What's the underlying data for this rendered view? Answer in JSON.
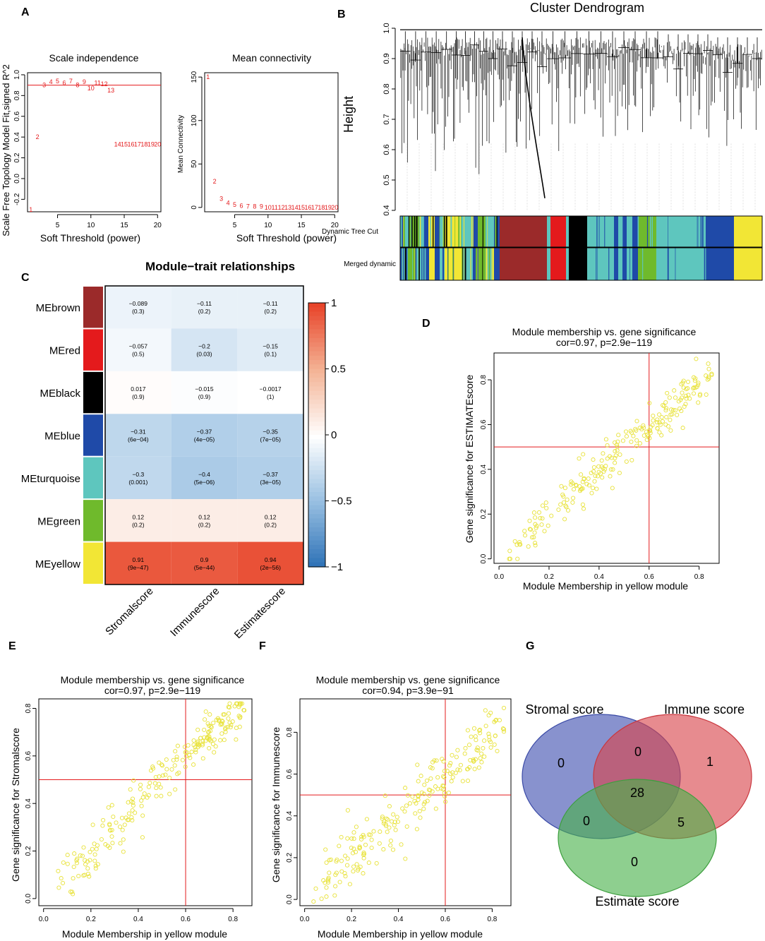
{
  "colors": {
    "red": "#e41a1c",
    "brown": "#9b2a2a",
    "black": "#000000",
    "blue": "#1f4aa8",
    "turquoise": "#5ec6be",
    "green": "#6fba2c",
    "yellow": "#f2e635",
    "point_yellow": "#e8e23a",
    "heat_pos": "#e8442a",
    "heat_neg": "#2a6fb5",
    "venn_stromal": "#3f4fb0",
    "venn_immune": "#d9434a",
    "venn_estimate": "#49b14a"
  },
  "panels": {
    "A": "A",
    "B": "B",
    "C": "C",
    "D": "D",
    "E": "E",
    "F": "F",
    "G": "G"
  },
  "chart_data": [
    {
      "id": "A1",
      "type": "scatter",
      "title": "Scale independence",
      "xlabel": "Soft Threshold (power)",
      "ylabel": "Scale Free Topology Model Fit,signed R^2",
      "xlim": [
        0.5,
        20.5
      ],
      "ylim": [
        -0.32,
        1.02
      ],
      "xticks": [
        "5",
        "10",
        "15",
        "20"
      ],
      "xtick_values": [
        5,
        10,
        15,
        20
      ],
      "yticks": [
        "-0.2",
        "0.0",
        "0.2",
        "0.4",
        "0.6",
        "0.8",
        "1.0"
      ],
      "ytick_values": [
        -0.2,
        0.0,
        0.2,
        0.4,
        0.6,
        0.8,
        1.0
      ],
      "hline": 0.9,
      "labels": [
        "1",
        "2",
        "3",
        "4",
        "5",
        "6",
        "7",
        "8",
        "9",
        "10",
        "11",
        "12",
        "13",
        "14",
        "15",
        "16",
        "17",
        "18",
        "19",
        "20"
      ],
      "x": [
        1,
        2,
        3,
        4,
        5,
        6,
        7,
        8,
        9,
        10,
        11,
        12,
        13,
        14,
        15,
        16,
        17,
        18,
        19,
        20
      ],
      "y": [
        -0.3,
        0.4,
        0.9,
        0.93,
        0.94,
        0.92,
        0.94,
        0.9,
        0.93,
        0.87,
        0.92,
        0.91,
        0.85,
        0.33,
        0.33,
        0.33,
        0.33,
        0.33,
        0.33,
        0.33
      ]
    },
    {
      "id": "A2",
      "type": "scatter",
      "title": "Mean connectivity",
      "xlabel": "Soft Threshold (power)",
      "ylabel": "Mean Connectivity",
      "xlim": [
        0.5,
        20.5
      ],
      "ylim": [
        -5,
        155
      ],
      "xticks": [
        "5",
        "10",
        "15",
        "20"
      ],
      "xtick_values": [
        5,
        10,
        15,
        20
      ],
      "yticks": [
        "0",
        "50",
        "100",
        "150"
      ],
      "ytick_values": [
        0,
        50,
        100,
        150
      ],
      "labels": [
        "1",
        "2",
        "3",
        "4",
        "5",
        "6",
        "7",
        "8",
        "9",
        "10",
        "11",
        "12",
        "13",
        "14",
        "15",
        "16",
        "17",
        "18",
        "19",
        "20"
      ],
      "x": [
        1,
        2,
        3,
        4,
        5,
        6,
        7,
        8,
        9,
        10,
        11,
        12,
        13,
        14,
        15,
        16,
        17,
        18,
        19,
        20
      ],
      "y": [
        150,
        30,
        10,
        5,
        3,
        2,
        1,
        1,
        1,
        0,
        0,
        0,
        0,
        0,
        0,
        0,
        0,
        0,
        0,
        0
      ]
    },
    {
      "id": "B",
      "type": "dendrogram",
      "title": "Cluster Dendrogram",
      "ylabel": "Height",
      "ylim": [
        0.4,
        1.0
      ],
      "yticks": [
        "0.4",
        "0.5",
        "0.6",
        "0.7",
        "0.8",
        "0.9",
        "1.0"
      ],
      "ytick_values": [
        0.4,
        0.5,
        0.6,
        0.7,
        0.8,
        0.9,
        1.0
      ],
      "row_labels": [
        "Dynamic Tree Cut",
        "Merged dynamic"
      ]
    },
    {
      "id": "C",
      "type": "heatmap",
      "title": "Module−trait relationships",
      "rows": [
        "MEbrown",
        "MEred",
        "MEblack",
        "MEblue",
        "MEturquoise",
        "MEgreen",
        "MEyellow"
      ],
      "row_colors": [
        "#9b2a2a",
        "#e41a1c",
        "#000000",
        "#1f4aa8",
        "#5ec6be",
        "#6fba2c",
        "#f2e635"
      ],
      "columns": [
        "Stromalscore",
        "Immunescore",
        "Estimatescore"
      ],
      "values": [
        [
          -0.089,
          -0.11,
          -0.11
        ],
        [
          -0.057,
          -0.2,
          -0.15
        ],
        [
          0.017,
          -0.015,
          -0.0017
        ],
        [
          -0.31,
          -0.37,
          -0.35
        ],
        [
          -0.3,
          -0.4,
          -0.37
        ],
        [
          0.12,
          0.12,
          0.12
        ],
        [
          0.91,
          0.9,
          0.94
        ]
      ],
      "value_labels": [
        [
          "−0.089",
          "−0.11",
          "−0.11"
        ],
        [
          "−0.057",
          "−0.2",
          "−0.15"
        ],
        [
          "0.017",
          "−0.015",
          "−0.0017"
        ],
        [
          "−0.31",
          "−0.37",
          "−0.35"
        ],
        [
          "−0.3",
          "−0.4",
          "−0.37"
        ],
        [
          "0.12",
          "0.12",
          "0.12"
        ],
        [
          "0.91",
          "0.9",
          "0.94"
        ]
      ],
      "pvalue_labels": [
        [
          "(0.3)",
          "(0.2)",
          "(0.2)"
        ],
        [
          "(0.5)",
          "(0.03)",
          "(0.1)"
        ],
        [
          "(0.9)",
          "(0.9)",
          "(1)"
        ],
        [
          "(6e−04)",
          "(4e−05)",
          "(7e−05)"
        ],
        [
          "(0.001)",
          "(5e−06)",
          "(3e−05)"
        ],
        [
          "(0.2)",
          "(0.2)",
          "(0.2)"
        ],
        [
          "(9e−47)",
          "(5e−44)",
          "(2e−56)"
        ]
      ],
      "scale_ticks": [
        "1",
        "0.5",
        "0",
        "−0.5",
        "−1"
      ],
      "scale_values": [
        1,
        0.5,
        0,
        -0.5,
        -1
      ]
    },
    {
      "id": "D",
      "type": "scatter",
      "title": "Module membership vs. gene significance",
      "subtitle": "cor=0.97, p=2.9e−119",
      "xlabel": "Module Membership in yellow module",
      "ylabel": "Gene significance for  ESTIMATEscore",
      "xlim": [
        -0.02,
        0.88
      ],
      "ylim": [
        -0.02,
        0.92
      ],
      "xticks": [
        "0.0",
        "0.2",
        "0.4",
        "0.6",
        "0.8"
      ],
      "xtick_values": [
        0,
        0.2,
        0.4,
        0.6,
        0.8
      ],
      "yticks": [
        "0.0",
        "0.2",
        "0.4",
        "0.6",
        "0.8"
      ],
      "ytick_values": [
        0,
        0.2,
        0.4,
        0.6,
        0.8
      ],
      "vline": 0.6,
      "hline": 0.5,
      "n_points": 220,
      "cor": 0.97
    },
    {
      "id": "E",
      "type": "scatter",
      "title": "Module membership vs. gene significance",
      "subtitle": "cor=0.97, p=2.9e−119",
      "xlabel": "Module Membership in yellow module",
      "ylabel": "Gene significance for  Stromalscore",
      "xlim": [
        -0.02,
        0.88
      ],
      "ylim": [
        -0.03,
        0.84
      ],
      "xticks": [
        "0.0",
        "0.2",
        "0.4",
        "0.6",
        "0.8"
      ],
      "xtick_values": [
        0,
        0.2,
        0.4,
        0.6,
        0.8
      ],
      "yticks": [
        "0.0",
        "0.2",
        "0.4",
        "0.6",
        "0.8"
      ],
      "ytick_values": [
        0,
        0.2,
        0.4,
        0.6,
        0.8
      ],
      "vline": 0.6,
      "hline": 0.5,
      "n_points": 220,
      "cor": 0.97
    },
    {
      "id": "F",
      "type": "scatter",
      "title": "Module membership vs. gene significance",
      "subtitle": "cor=0.94, p=3.9e−91",
      "xlabel": "Module Membership in yellow module",
      "ylabel": "Gene significance for  Immunescore",
      "xlim": [
        -0.02,
        0.88
      ],
      "ylim": [
        -0.03,
        0.96
      ],
      "xticks": [
        "0.0",
        "0.2",
        "0.4",
        "0.6",
        "0.8"
      ],
      "xtick_values": [
        0,
        0.2,
        0.4,
        0.6,
        0.8
      ],
      "yticks": [
        "0.0",
        "0.2",
        "0.4",
        "0.6",
        "0.8"
      ],
      "ytick_values": [
        0,
        0.2,
        0.4,
        0.6,
        0.8
      ],
      "vline": 0.6,
      "hline": 0.5,
      "n_points": 220,
      "cor": 0.94
    },
    {
      "id": "G",
      "type": "venn",
      "sets": [
        "Stromal score",
        "Immune score",
        "Estimate score"
      ],
      "regions": {
        "stromal_only": "0",
        "immune_only": "1",
        "estimate_only": "0",
        "stromal_immune": "0",
        "stromal_estimate": "0",
        "immune_estimate": "5",
        "all_three": "28"
      }
    }
  ]
}
